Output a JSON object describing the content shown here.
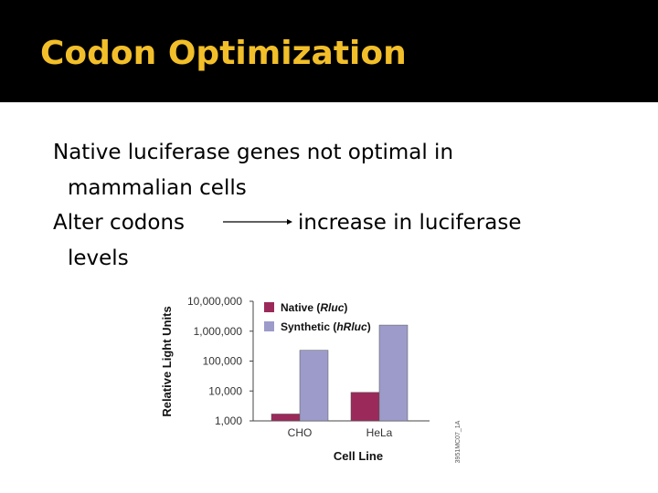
{
  "slide": {
    "title": "Codon Optimization",
    "bullet_glyph": "",
    "bullets": [
      {
        "line1": "Native luciferase genes not optimal in",
        "line2": "mammalian cells"
      },
      {
        "line1_start": "Alter codons",
        "line1_end": "increase in luciferase",
        "line2": "levels"
      }
    ],
    "arrow_icon": "right-arrow-icon"
  },
  "colors": {
    "title": "#f2bf2a",
    "title_bar": "#000000",
    "native": "#9b2a5a",
    "synthetic": "#9c9bc9"
  },
  "chart_data": {
    "type": "bar",
    "categories": [
      "CHO",
      "HeLa"
    ],
    "series": [
      {
        "name": "Native (Rluc)",
        "name_base": "Native (",
        "name_italic": "Rluc",
        "name_end": ")",
        "color": "#9b2a5a",
        "values": [
          1700,
          9000
        ]
      },
      {
        "name": "Synthetic (hRluc)",
        "name_base": "Synthetic (",
        "name_italic": "hRluc",
        "name_end": ")",
        "color": "#9c9bc9",
        "values": [
          230000,
          1600000
        ]
      }
    ],
    "xlabel": "Cell Line",
    "ylabel": "Relative Light Units",
    "y_scale": "log",
    "ylim": [
      1000,
      10000000
    ],
    "yticks": [
      1000,
      10000,
      100000,
      1000000,
      10000000
    ],
    "ytick_labels": [
      "1,000",
      "10,000",
      "100,000",
      "1,000,000",
      "10,000,000"
    ],
    "legend_position": "top-left",
    "figure_code": "3951MC07_1A"
  }
}
